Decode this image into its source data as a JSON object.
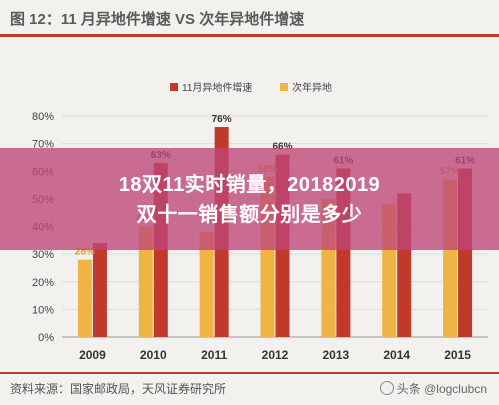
{
  "figure": {
    "title": "图 12：11 月异地件增速 VS 次年异地件增速",
    "source": "资料来源：国家邮政局，天风证券研究所",
    "watermark": "头条 @logclubcn"
  },
  "overlay": {
    "line1": "18双11实时销量，20182019",
    "line2": "双十一销售额分别是多少",
    "color": "#be4678"
  },
  "chart_data": {
    "type": "bar",
    "categories": [
      "2009",
      "2010",
      "2011",
      "2012",
      "2013",
      "2014",
      "2015"
    ],
    "series": [
      {
        "name": "11月异地件增速",
        "color": "#c0392b",
        "values": [
          34,
          63,
          76,
          66,
          61,
          52,
          61
        ]
      },
      {
        "name": "次年异地",
        "color": "#f0b445",
        "values": [
          28,
          40,
          38,
          58,
          50,
          48,
          57
        ]
      }
    ],
    "data_labels": {
      "11月异地件增速": [
        "",
        "63%",
        "76%",
        "66%",
        "61%",
        "",
        "61%"
      ],
      "次年异地": [
        "28%",
        "40%",
        "",
        "58%",
        "",
        "",
        "57%"
      ]
    },
    "yticks": [
      "0%",
      "10%",
      "20%",
      "30%",
      "40%",
      "50%",
      "60%",
      "70%",
      "80%"
    ],
    "ylim": [
      0,
      80
    ],
    "legend_position": "top-center"
  }
}
